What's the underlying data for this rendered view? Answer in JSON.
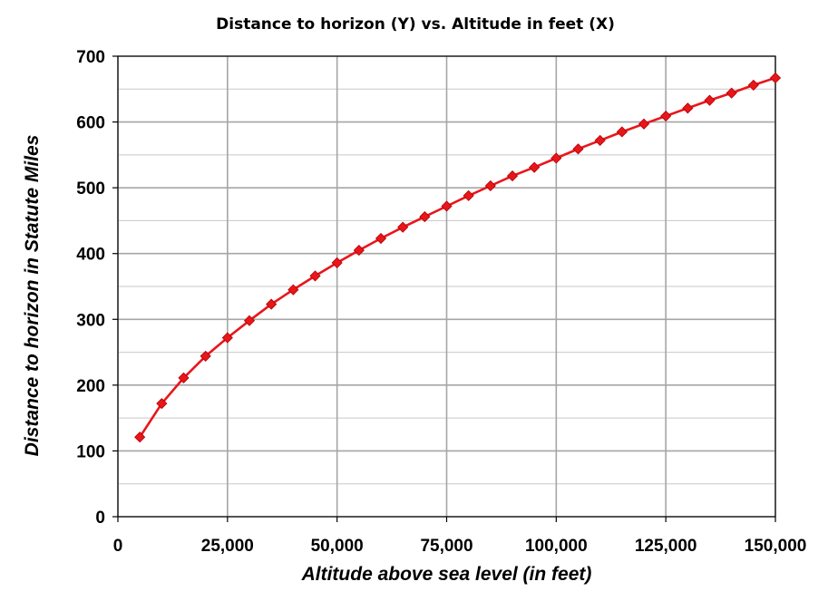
{
  "chart_data": {
    "type": "line",
    "title": "Distance to horizon (Y)  vs.  Altitude in feet (X)",
    "xlabel": "Altitude above sea level (in feet)",
    "ylabel": "Distance to horizon in Statute Miles",
    "xlim": [
      0,
      150000
    ],
    "ylim": [
      0,
      700
    ],
    "x_ticks": [
      0,
      25000,
      50000,
      75000,
      100000,
      125000,
      150000
    ],
    "x_tick_labels": [
      "0",
      "25,000",
      "50,000",
      "75,000",
      "100,000",
      "125,000",
      "150,000"
    ],
    "y_ticks": [
      0,
      100,
      200,
      300,
      400,
      500,
      600,
      700
    ],
    "y_tick_labels": [
      "0",
      "100",
      "200",
      "300",
      "400",
      "500",
      "600",
      "700"
    ],
    "grid": true,
    "legend": "none",
    "series": [
      {
        "color": "#e8161b",
        "marker": "diamond",
        "x": [
          5000,
          10000,
          15000,
          20000,
          25000,
          30000,
          35000,
          40000,
          45000,
          50000,
          55000,
          60000,
          65000,
          70000,
          75000,
          80000,
          85000,
          90000,
          95000,
          100000,
          105000,
          110000,
          115000,
          120000,
          125000,
          130000,
          135000,
          140000,
          145000,
          150000
        ],
        "y": [
          121,
          172,
          211,
          244,
          272,
          298,
          323,
          345,
          366,
          386,
          405,
          423,
          440,
          456,
          472,
          488,
          503,
          518,
          531,
          545,
          559,
          572,
          585,
          597,
          609,
          621,
          633,
          644,
          656,
          667
        ]
      }
    ]
  }
}
